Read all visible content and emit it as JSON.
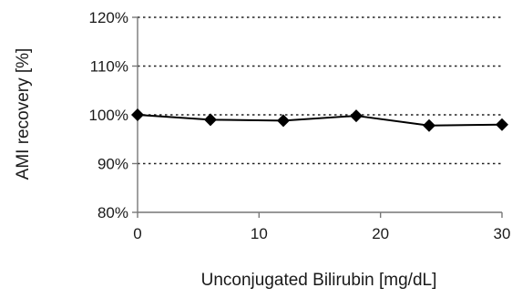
{
  "chart_data": {
    "type": "line",
    "title": "",
    "xlabel": "Unconjugated Bilirubin [mg/dL]",
    "ylabel": "AMI recovery [%]",
    "xlim": [
      0,
      30
    ],
    "ylim": [
      80,
      120
    ],
    "x_ticks": [
      0,
      10,
      20,
      30
    ],
    "x_tick_labels": [
      "0",
      "10",
      "20",
      "30"
    ],
    "y_ticks": [
      80,
      90,
      100,
      110,
      120
    ],
    "y_tick_labels": [
      "80%",
      "90%",
      "100%",
      "110%",
      "120%"
    ],
    "grid": "horizontal dotted",
    "legend": "none",
    "series": [
      {
        "marker": "diamond",
        "color": "#000000",
        "x": [
          0,
          6,
          12,
          18,
          24,
          30
        ],
        "y": [
          100,
          99,
          98.8,
          99.8,
          97.8,
          98
        ]
      }
    ]
  }
}
